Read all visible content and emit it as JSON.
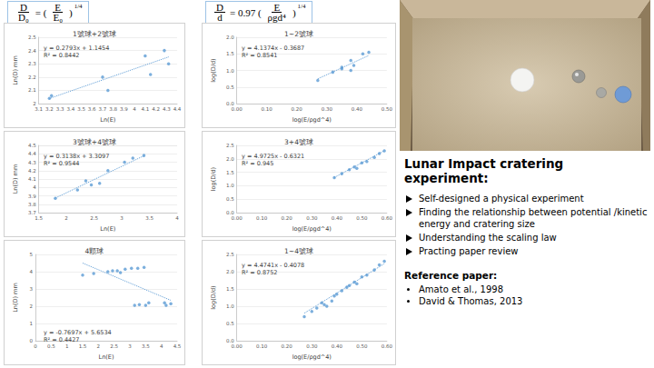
{
  "formulas": [
    {
      "terms": [
        {
          "frac": [
            "D",
            "D₀"
          ]
        },
        {
          "text": "= ("
        },
        {
          "frac": [
            "E",
            "E₀"
          ]
        },
        {
          "text": ")"
        },
        {
          "sup": "1/4"
        }
      ]
    },
    {
      "terms": [
        {
          "frac": [
            "D",
            "d"
          ]
        },
        {
          "text": "= 0.97 ("
        },
        {
          "frac": [
            "E",
            "ρgd⁴"
          ]
        },
        {
          "text": ")"
        },
        {
          "sup": "1/4"
        }
      ]
    }
  ],
  "chart_data": [
    {
      "type": "scatter",
      "title": "1號球+2號球",
      "x_label": "Ln(E)",
      "y_label": "Ln(D) mm",
      "x": [
        3.2,
        3.22,
        3.7,
        3.75,
        4.1,
        4.15,
        4.28,
        4.32
      ],
      "values": [
        2.04,
        2.06,
        2.2,
        2.1,
        2.36,
        2.22,
        2.4,
        2.3
      ],
      "color": "#5b9bd5",
      "marker": "circle",
      "trendline": {
        "label": "y = 0.2793x + 1.1454",
        "slope": 0.2793,
        "intercept": 1.1454,
        "x_range": [
          3.2,
          4.32
        ],
        "color": "#5b9bd5",
        "line_style": "dotted"
      },
      "r2_label": "R² = 0.8442",
      "xlim": [
        3.1,
        4.4
      ],
      "xticks": [
        3.1,
        3.2,
        3.3,
        3.4,
        3.5,
        3.6,
        3.7,
        3.8,
        3.9,
        4,
        4.1,
        4.2,
        4.3,
        4.4
      ],
      "ylim": [
        2,
        2.5
      ],
      "yticks": [
        2,
        2.1,
        2.2,
        2.3,
        2.4,
        2.5
      ],
      "grid": true
    },
    {
      "type": "scatter",
      "title": "3號球+4號球",
      "x_label": "Ln(E)",
      "y_label": "Ln(D) mm",
      "x": [
        1.8,
        2.2,
        2.35,
        2.45,
        2.6,
        2.75,
        3.05,
        3.2,
        3.4
      ],
      "values": [
        3.87,
        3.97,
        4.08,
        4.03,
        4.05,
        4.2,
        4.3,
        4.35,
        4.38
      ],
      "color": "#5b9bd5",
      "marker": "circle",
      "trendline": {
        "label": "y = 0.3138x + 3.3097",
        "slope": 0.3138,
        "intercept": 3.3097,
        "x_range": [
          1.8,
          3.4
        ],
        "color": "#5b9bd5",
        "line_style": "dotted"
      },
      "r2_label": "R² = 0.9544",
      "xlim": [
        1.5,
        4
      ],
      "xticks": [
        1.5,
        2,
        2.5,
        3,
        3.5,
        4
      ],
      "ylim": [
        3.7,
        4.5
      ],
      "yticks": [
        3.7,
        3.8,
        3.9,
        4,
        4.1,
        4.2,
        4.3,
        4.4,
        4.5
      ],
      "grid": true
    },
    {
      "type": "scatter",
      "title": "4顆球",
      "x_label": "Ln(E)",
      "y_label": "Ln(D) mm",
      "x": [
        1.5,
        1.85,
        2.3,
        2.45,
        2.6,
        2.7,
        2.85,
        3.05,
        3.25,
        3.45,
        3.15,
        3.3,
        3.5,
        3.6,
        4.1,
        4.15,
        4.3
      ],
      "values": [
        3.8,
        3.9,
        4.0,
        4.05,
        4.05,
        3.95,
        4.15,
        4.2,
        4.2,
        4.25,
        2.05,
        2.1,
        2.05,
        2.2,
        2.2,
        2.05,
        2.15
      ],
      "color": "#5b9bd5",
      "marker": "circle",
      "trendline": {
        "label": "y = -0.7697x + 5.6534",
        "slope": -0.7697,
        "intercept": 5.6534,
        "x_range": [
          1.5,
          4.3
        ],
        "color": "#5b9bd5",
        "line_style": "dotted"
      },
      "r2_label": "R² = 0.4427",
      "xlim": [
        0,
        4.5
      ],
      "xticks": [
        0,
        0.5,
        1,
        1.5,
        2,
        2.5,
        3,
        3.5,
        4,
        4.5
      ],
      "ylim": [
        0,
        5
      ],
      "yticks": [
        0,
        1,
        2,
        3,
        4,
        5
      ],
      "grid": true
    },
    {
      "type": "scatter",
      "title": "1~2號球",
      "x_label": "log(E/ρgd^4)",
      "y_label": "log(D/d)",
      "x": [
        0.27,
        0.32,
        0.35,
        0.35,
        0.38,
        0.38,
        0.39,
        0.42,
        0.44
      ],
      "values": [
        0.7,
        0.95,
        1.05,
        1.1,
        1.0,
        1.3,
        1.15,
        1.5,
        1.55
      ],
      "color": "#5b9bd5",
      "marker": "circle",
      "trendline": {
        "label": "y = 4.1374x - 0.3687",
        "slope": 4.1374,
        "intercept": -0.3687,
        "x_range": [
          0.27,
          0.44
        ],
        "color": "#5b9bd5",
        "line_style": "dotted"
      },
      "r2_label": "R² = 0.8541",
      "xlim": [
        0,
        0.5
      ],
      "xticks": [
        {
          "value": 0,
          "label": "0.00"
        },
        {
          "value": 0.1,
          "label": "0.10"
        },
        {
          "value": 0.2,
          "label": "0.20"
        },
        {
          "value": 0.3,
          "label": "0.30"
        },
        {
          "value": 0.4,
          "label": "0.40"
        },
        {
          "value": 0.5,
          "label": "0.50"
        }
      ],
      "ylim": [
        0,
        2
      ],
      "yticks": [
        {
          "value": 0,
          "label": "0.0"
        },
        {
          "value": 0.5,
          "label": "0.5"
        },
        {
          "value": 1,
          "label": "1.0"
        },
        {
          "value": 1.5,
          "label": "1.5"
        },
        {
          "value": 2,
          "label": "2.0"
        }
      ],
      "grid": true
    },
    {
      "type": "scatter",
      "title": "3+4號球",
      "x_label": "log(E/ρgd^4)",
      "y_label": "log(D/d)",
      "x": [
        0.39,
        0.42,
        0.45,
        0.47,
        0.48,
        0.5,
        0.52,
        0.55,
        0.57,
        0.59
      ],
      "values": [
        1.3,
        1.45,
        1.6,
        1.7,
        1.65,
        1.85,
        1.9,
        2.05,
        2.2,
        2.3
      ],
      "color": "#5b9bd5",
      "marker": "circle",
      "trendline": {
        "label": "y = 4.9725x - 0.6321",
        "slope": 4.9725,
        "intercept": -0.6321,
        "x_range": [
          0.39,
          0.59
        ],
        "color": "#5b9bd5",
        "line_style": "dotted"
      },
      "r2_label": "R² = 0.945",
      "xlim": [
        0,
        0.6
      ],
      "xticks": [
        {
          "value": 0,
          "label": "0.00"
        },
        {
          "value": 0.1,
          "label": "0.10"
        },
        {
          "value": 0.2,
          "label": "0.20"
        },
        {
          "value": 0.3,
          "label": "0.30"
        },
        {
          "value": 0.4,
          "label": "0.40"
        },
        {
          "value": 0.5,
          "label": "0.50"
        },
        {
          "value": 0.6,
          "label": "0.60"
        }
      ],
      "ylim": [
        0,
        2.5
      ],
      "yticks": [
        {
          "value": 0,
          "label": "0.0"
        },
        {
          "value": 0.5,
          "label": "0.5"
        },
        {
          "value": 1,
          "label": "1.0"
        },
        {
          "value": 1.5,
          "label": "1.5"
        },
        {
          "value": 2,
          "label": "2.0"
        },
        {
          "value": 2.5,
          "label": "2.5"
        }
      ],
      "grid": true
    },
    {
      "type": "scatter",
      "title": "1~4號球",
      "x_label": "log(E/ρgd^4)",
      "y_label": "log(D/d)",
      "x": [
        0.27,
        0.3,
        0.32,
        0.34,
        0.35,
        0.36,
        0.38,
        0.39,
        0.4,
        0.42,
        0.44,
        0.45,
        0.47,
        0.48,
        0.5,
        0.52,
        0.55,
        0.57,
        0.59
      ],
      "values": [
        0.7,
        0.85,
        0.95,
        1.1,
        1.05,
        1.0,
        1.15,
        1.3,
        1.35,
        1.45,
        1.55,
        1.6,
        1.7,
        1.65,
        1.85,
        1.9,
        2.05,
        2.2,
        2.3
      ],
      "color": "#5b9bd5",
      "marker": "circle",
      "trendline": {
        "label": "y = 4.4741x - 0.4078",
        "slope": 4.4741,
        "intercept": -0.4078,
        "x_range": [
          0.27,
          0.59
        ],
        "color": "#5b9bd5",
        "line_style": "dotted"
      },
      "r2_label": "R² = 0.8752",
      "xlim": [
        0,
        0.6
      ],
      "xticks": [
        {
          "value": 0,
          "label": "0.00"
        },
        {
          "value": 0.1,
          "label": "0.10"
        },
        {
          "value": 0.2,
          "label": "0.20"
        },
        {
          "value": 0.3,
          "label": "0.30"
        },
        {
          "value": 0.4,
          "label": "0.40"
        },
        {
          "value": 0.5,
          "label": "0.50"
        },
        {
          "value": 0.6,
          "label": "0.60"
        }
      ],
      "ylim": [
        0,
        2.5
      ],
      "yticks": [
        {
          "value": 0,
          "label": "0.0"
        },
        {
          "value": 0.5,
          "label": "0.5"
        },
        {
          "value": 1,
          "label": "1.0"
        },
        {
          "value": 1.5,
          "label": "1.5"
        },
        {
          "value": 2,
          "label": "2.0"
        },
        {
          "value": 2.5,
          "label": "2.5"
        }
      ],
      "grid": true
    }
  ],
  "panel": {
    "title": "Lunar Impact cratering experiment:",
    "bullets": [
      "Self-designed a physical experiment",
      "Finding the relationship between potential /kinetic energy and cratering size",
      "Understanding the scaling law",
      "Practing paper review"
    ],
    "references_title": "Reference paper:",
    "references": [
      "Amato et al., 1998",
      "David & Thomas, 2013"
    ]
  }
}
